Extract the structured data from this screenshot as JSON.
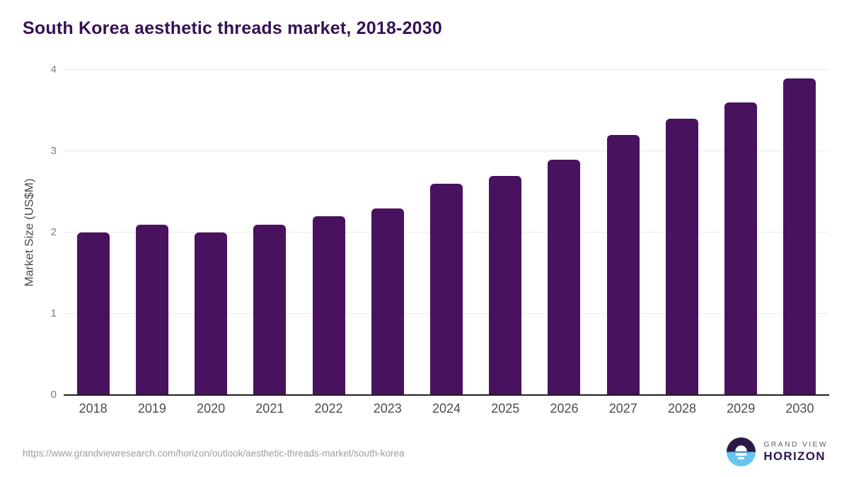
{
  "title": "South Korea aesthetic threads market, 2018-2030",
  "chart_data": {
    "type": "bar",
    "title": "South Korea aesthetic threads market, 2018-2030",
    "categories": [
      "2018",
      "2019",
      "2020",
      "2021",
      "2022",
      "2023",
      "2024",
      "2025",
      "2026",
      "2027",
      "2028",
      "2029",
      "2030"
    ],
    "values": [
      2.0,
      2.1,
      2.0,
      2.1,
      2.2,
      2.3,
      2.6,
      2.7,
      2.9,
      3.2,
      3.4,
      3.6,
      3.9
    ],
    "xlabel": "",
    "ylabel": "Market Size (US$M)",
    "ylim": [
      0,
      4
    ],
    "yticks": [
      0,
      1,
      2,
      3,
      4
    ],
    "grid": true,
    "legend": "none",
    "bar_color": "#49125e"
  },
  "footer": {
    "source_url": "https://www.grandviewresearch.com/horizon/outlook/aesthetic-threads-market/south-korea",
    "logo": {
      "top_text": "GRAND VIEW",
      "bottom_text": "HORIZON"
    }
  },
  "colors": {
    "bar": "#49125e",
    "title": "#351253",
    "gridline": "#e9e9e9",
    "axis_line": "#1e1e1e",
    "tick_label": "#7c7c7c",
    "x_label": "#4c4c4c",
    "source_text": "#9d9d9d",
    "logo_purple": "#2b1a46",
    "logo_blue": "#69c5f0"
  }
}
